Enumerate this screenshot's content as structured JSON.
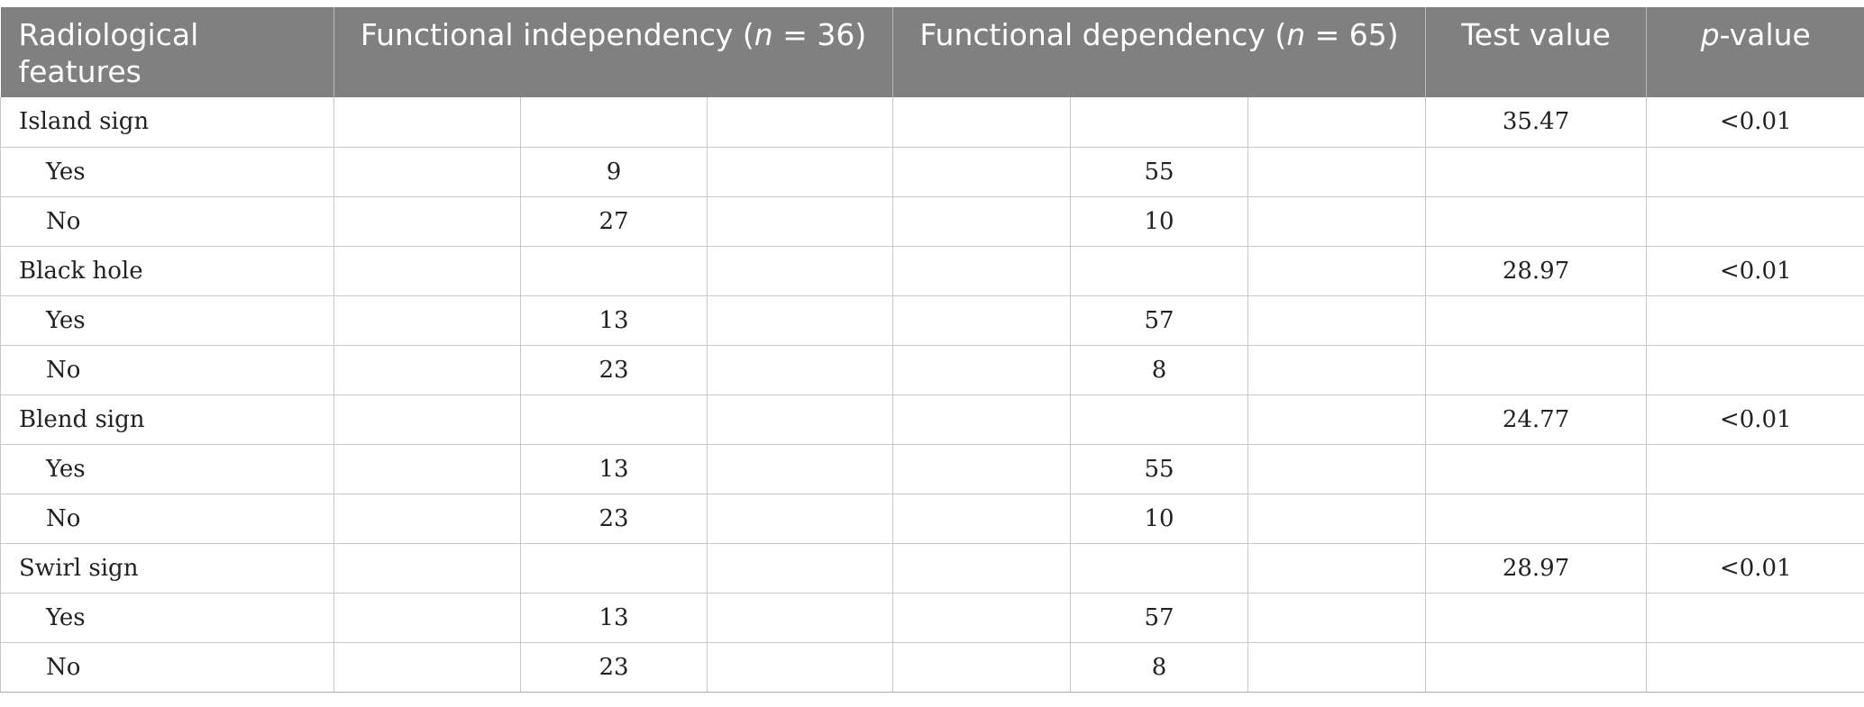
{
  "table": {
    "headers": {
      "features": "Radiological features",
      "independency_prefix": "Functional independency (",
      "independency_n": "n",
      "independency_suffix": " = 36)",
      "dependency_prefix": "Functional dependency (",
      "dependency_n": "n",
      "dependency_suffix": " = 65)",
      "test_value": "Test value",
      "p_prefix": "p",
      "p_suffix": "-value"
    },
    "rows": [
      {
        "label": "Island sign",
        "independency": "",
        "dependency": "",
        "test_value": "35.47",
        "p_value": "<0.01"
      },
      {
        "label": "Yes",
        "independency": "9",
        "dependency": "55",
        "test_value": "",
        "p_value": ""
      },
      {
        "label": "No",
        "independency": "27",
        "dependency": "10",
        "test_value": "",
        "p_value": ""
      },
      {
        "label": "Black hole",
        "independency": "",
        "dependency": "",
        "test_value": "28.97",
        "p_value": "<0.01"
      },
      {
        "label": "Yes",
        "independency": "13",
        "dependency": "57",
        "test_value": "",
        "p_value": ""
      },
      {
        "label": "No",
        "independency": "23",
        "dependency": "8",
        "test_value": "",
        "p_value": ""
      },
      {
        "label": "Blend sign",
        "independency": "",
        "dependency": "",
        "test_value": "24.77",
        "p_value": "<0.01"
      },
      {
        "label": "Yes",
        "independency": "13",
        "dependency": "55",
        "test_value": "",
        "p_value": ""
      },
      {
        "label": "No",
        "independency": "23",
        "dependency": "10",
        "test_value": "",
        "p_value": ""
      },
      {
        "label": "Swirl sign",
        "independency": "",
        "dependency": "",
        "test_value": "28.97",
        "p_value": "<0.01"
      },
      {
        "label": "Yes",
        "independency": "13",
        "dependency": "57",
        "test_value": "",
        "p_value": ""
      },
      {
        "label": "No",
        "independency": "23",
        "dependency": "8",
        "test_value": "",
        "p_value": ""
      }
    ]
  }
}
